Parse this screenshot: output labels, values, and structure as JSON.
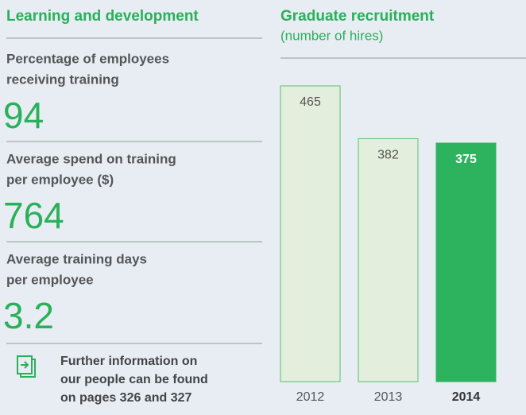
{
  "left": {
    "title": "Learning and development",
    "stats": [
      {
        "label": [
          "Percentage of employees",
          "receiving training"
        ],
        "value": "94"
      },
      {
        "label": [
          "Average spend on training",
          "per employee ($)"
        ],
        "value": "764"
      },
      {
        "label": [
          "Average training days",
          "per employee"
        ],
        "value": "3.2"
      }
    ],
    "note": [
      "Further information on",
      "our people can be found",
      "on pages 326 and 327"
    ]
  },
  "chart_data": {
    "type": "bar",
    "title": "Graduate recruitment",
    "subtitle": "(number of hires)",
    "categories": [
      "2012",
      "2013",
      "2014"
    ],
    "values": [
      465,
      382,
      375
    ],
    "color": "#e3eedc",
    "highlight": "2014",
    "highlight_color": "#2db35d"
  }
}
